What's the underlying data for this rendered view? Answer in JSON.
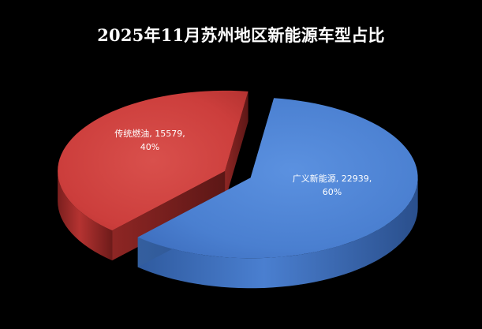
{
  "chart_data": {
    "type": "pie",
    "title": "2025年11月苏州地区新能源车型占比",
    "categories": [
      "广义新能源",
      "传统燃油"
    ],
    "values": [
      22939,
      15579
    ],
    "percents": [
      "60%",
      "40%"
    ],
    "colors": {
      "广义新能源": "#4a7fd0",
      "传统燃油": "#cc3e3c",
      "background": "#000000",
      "title": "#ffffff",
      "label": "#ffffff"
    },
    "style": "3d-exploded",
    "legend": "none",
    "data_labels": [
      {
        "category": "广义新能源",
        "value": "22939",
        "percent": "60%"
      },
      {
        "category": "传统燃油",
        "value": "15579",
        "percent": "40%"
      }
    ]
  }
}
